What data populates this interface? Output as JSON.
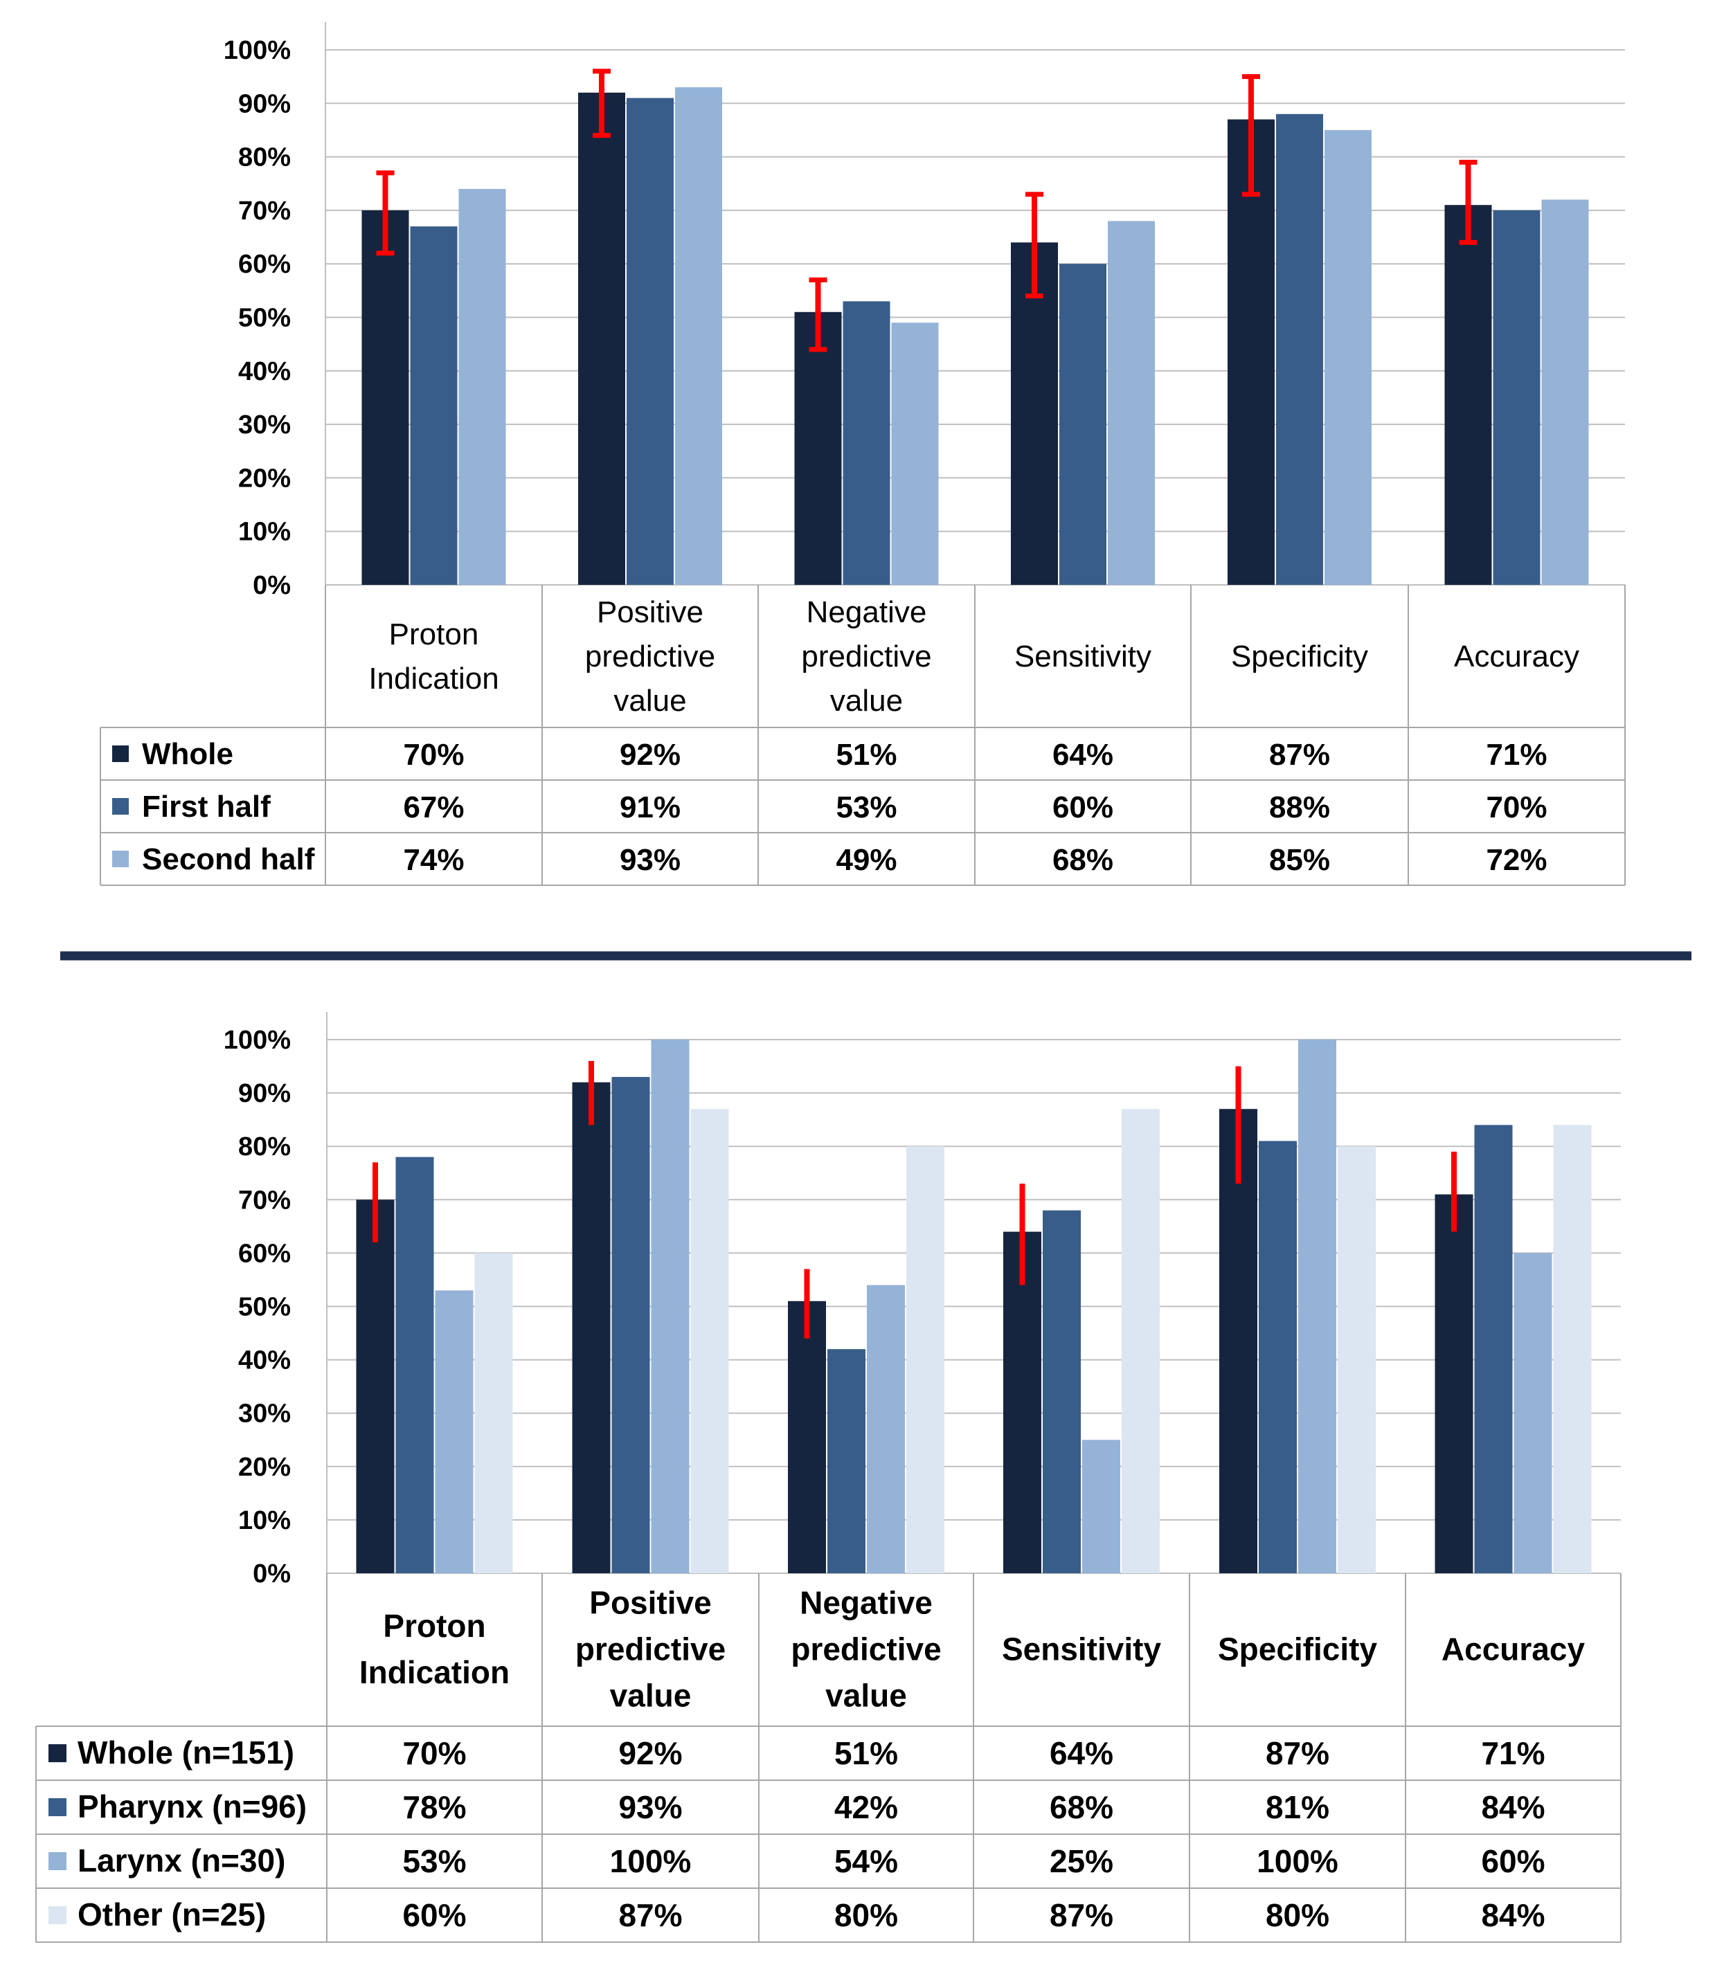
{
  "chart_data": [
    {
      "type": "bar",
      "categories": [
        [
          "Proton",
          "Indication"
        ],
        [
          "Positive",
          "predictive",
          "value"
        ],
        [
          "Negative",
          "predictive",
          "value"
        ],
        [
          "Sensitivity"
        ],
        [
          "Specificity"
        ],
        [
          "Accuracy"
        ]
      ],
      "series": [
        {
          "name": "Whole",
          "color": "#15253f",
          "values": [
            70,
            92,
            51,
            64,
            87,
            71
          ],
          "labels": [
            "70%",
            "92%",
            "51%",
            "64%",
            "87%",
            "71%"
          ]
        },
        {
          "name": "First half",
          "color": "#385d8a",
          "values": [
            67,
            91,
            53,
            60,
            88,
            70
          ],
          "labels": [
            "67%",
            "91%",
            "53%",
            "60%",
            "88%",
            "70%"
          ]
        },
        {
          "name": "Second half",
          "color": "#95b3d7",
          "values": [
            74,
            93,
            49,
            68,
            85,
            72
          ],
          "labels": [
            "74%",
            "93%",
            "49%",
            "68%",
            "85%",
            "72%"
          ]
        }
      ],
      "error_bars": {
        "series": "Whole",
        "color": "#ff0000",
        "low": [
          62,
          84,
          44,
          54,
          73,
          64
        ],
        "high": [
          77,
          96,
          57,
          73,
          95,
          79
        ]
      },
      "y_ticks": [
        "0%",
        "10%",
        "20%",
        "30%",
        "40%",
        "50%",
        "60%",
        "70%",
        "80%",
        "90%",
        "100%"
      ],
      "ylim": [
        0,
        100
      ],
      "grid": true
    },
    {
      "type": "bar",
      "categories": [
        [
          "Proton",
          "Indication"
        ],
        [
          "Positive",
          "predictive",
          "value"
        ],
        [
          "Negative",
          "predictive",
          "value"
        ],
        [
          "Sensitivity"
        ],
        [
          "Specificity"
        ],
        [
          "Accuracy"
        ]
      ],
      "series": [
        {
          "name": "Whole (n=151)",
          "color": "#15253f",
          "values": [
            70,
            92,
            51,
            64,
            87,
            71
          ],
          "labels": [
            "70%",
            "92%",
            "51%",
            "64%",
            "87%",
            "71%"
          ]
        },
        {
          "name": "Pharynx (n=96)",
          "color": "#385d8a",
          "values": [
            78,
            93,
            42,
            68,
            81,
            84
          ],
          "labels": [
            "78%",
            "93%",
            "42%",
            "68%",
            "81%",
            "84%"
          ]
        },
        {
          "name": "Larynx (n=30)",
          "color": "#95b3d7",
          "values": [
            53,
            100,
            54,
            25,
            100,
            60
          ],
          "labels": [
            "53%",
            "100%",
            "54%",
            "25%",
            "100%",
            "60%"
          ]
        },
        {
          "name": "Other (n=25)",
          "color": "#dce6f2",
          "values": [
            60,
            87,
            80,
            87,
            80,
            84
          ],
          "labels": [
            "60%",
            "87%",
            "80%",
            "87%",
            "80%",
            "84%"
          ]
        }
      ],
      "error_bars": {
        "series": "Whole (n=151)",
        "color": "#ff0000",
        "low": [
          62,
          84,
          44,
          54,
          73,
          64
        ],
        "high": [
          77,
          96,
          57,
          73,
          95,
          79
        ]
      },
      "y_ticks": [
        "0%",
        "10%",
        "20%",
        "30%",
        "40%",
        "50%",
        "60%",
        "70%",
        "80%",
        "90%",
        "100%"
      ],
      "ylim": [
        0,
        100
      ],
      "grid": true
    }
  ]
}
